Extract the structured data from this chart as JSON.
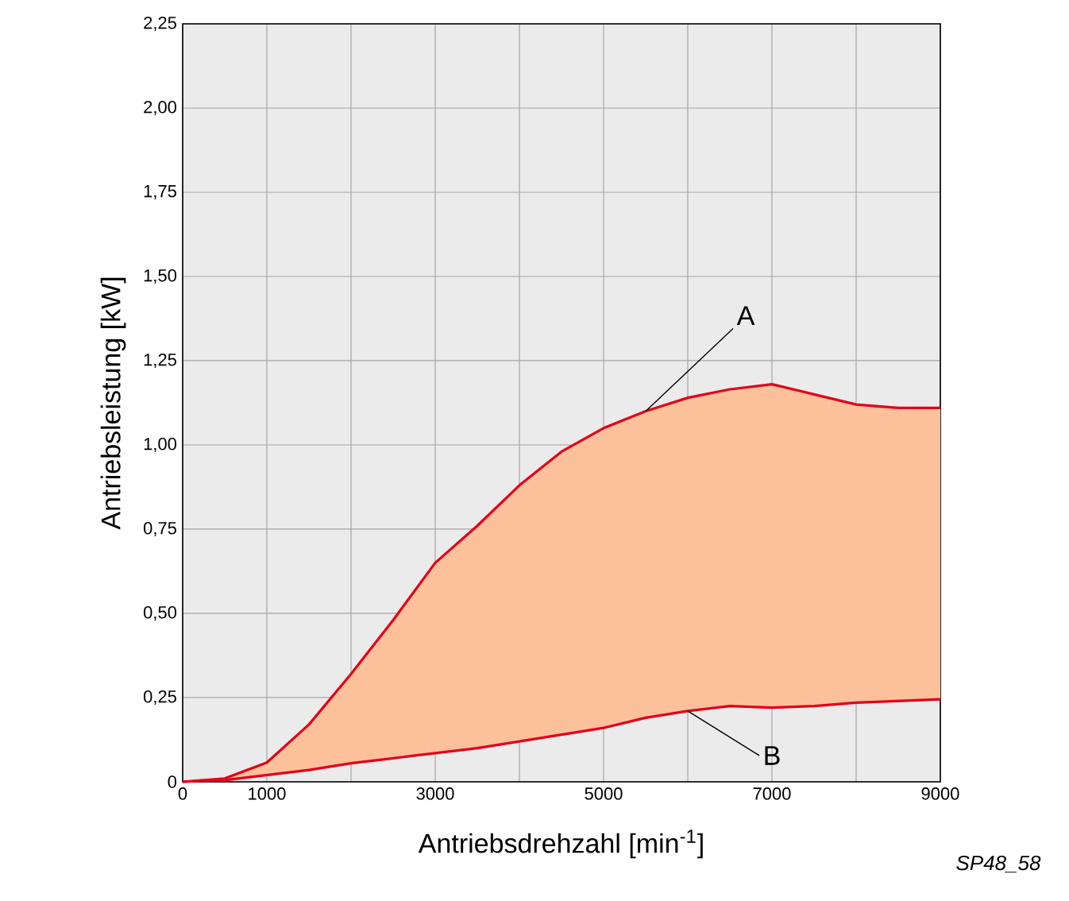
{
  "chart_data": {
    "type": "line",
    "xlabel": "Antriebsdrehzahl [min$^{-1}$]",
    "ylabel": "Antriebsleistung [kW]",
    "x": [
      0,
      500,
      1000,
      1500,
      2000,
      2500,
      3000,
      3500,
      4000,
      4500,
      5000,
      5500,
      6000,
      6500,
      7000,
      7500,
      8000,
      8500,
      9000
    ],
    "series": [
      {
        "name": "A",
        "color": "#e2001a",
        "values": [
          0,
          0.01,
          0.057,
          0.17,
          0.32,
          0.48,
          0.65,
          0.76,
          0.88,
          0.98,
          1.05,
          1.1,
          1.14,
          1.165,
          1.18,
          1.15,
          1.12,
          1.11,
          1.11
        ],
        "lower": [
          0,
          0.005,
          0.02,
          0.035,
          0.055,
          0.07,
          0.085,
          0.1,
          0.12,
          0.14,
          0.16,
          0.19,
          0.21,
          0.225,
          0.22,
          0.225,
          0.235,
          0.24,
          0.245
        ],
        "upper": [
          0,
          0.01,
          0.057,
          0.17,
          0.32,
          0.48,
          0.65,
          0.76,
          0.88,
          0.98,
          1.05,
          1.1,
          1.14,
          1.165,
          1.18,
          1.15,
          1.12,
          1.11,
          1.11
        ]
      },
      {
        "name": "B",
        "color": "#e2001a",
        "values": [
          0,
          0.005,
          0.02,
          0.035,
          0.055,
          0.07,
          0.085,
          0.1,
          0.12,
          0.14,
          0.16,
          0.19,
          0.21,
          0.225,
          0.22,
          0.225,
          0.235,
          0.24,
          0.245
        ]
      }
    ],
    "xlim": [
      0,
      9000
    ],
    "ylim": [
      0,
      2.25
    ],
    "xticks": [
      0,
      1000,
      {
        "value": 2000,
        "label": null
      },
      3000,
      {
        "value": 4000,
        "label": null
      },
      5000,
      {
        "value": 6000,
        "label": null
      },
      7000,
      {
        "value": 8000,
        "label": null
      },
      9000
    ],
    "yticks": [
      0,
      {
        "value": 0.25,
        "label": "0,25"
      },
      {
        "value": 0.5,
        "label": "0,50"
      },
      {
        "value": 0.75,
        "label": "0,75"
      },
      {
        "value": 1.0,
        "label": "1,00"
      },
      {
        "value": 1.25,
        "label": "1,25"
      },
      {
        "value": 1.5,
        "label": "1,50"
      },
      {
        "value": 1.75,
        "label": "1,75"
      },
      {
        "value": 2.0,
        "label": "2,00"
      },
      {
        "value": 2.25,
        "label": "2,25"
      }
    ],
    "grid": true,
    "marker": "none",
    "line_style": "solid",
    "annotations": [
      "SP48_58"
    ]
  }
}
